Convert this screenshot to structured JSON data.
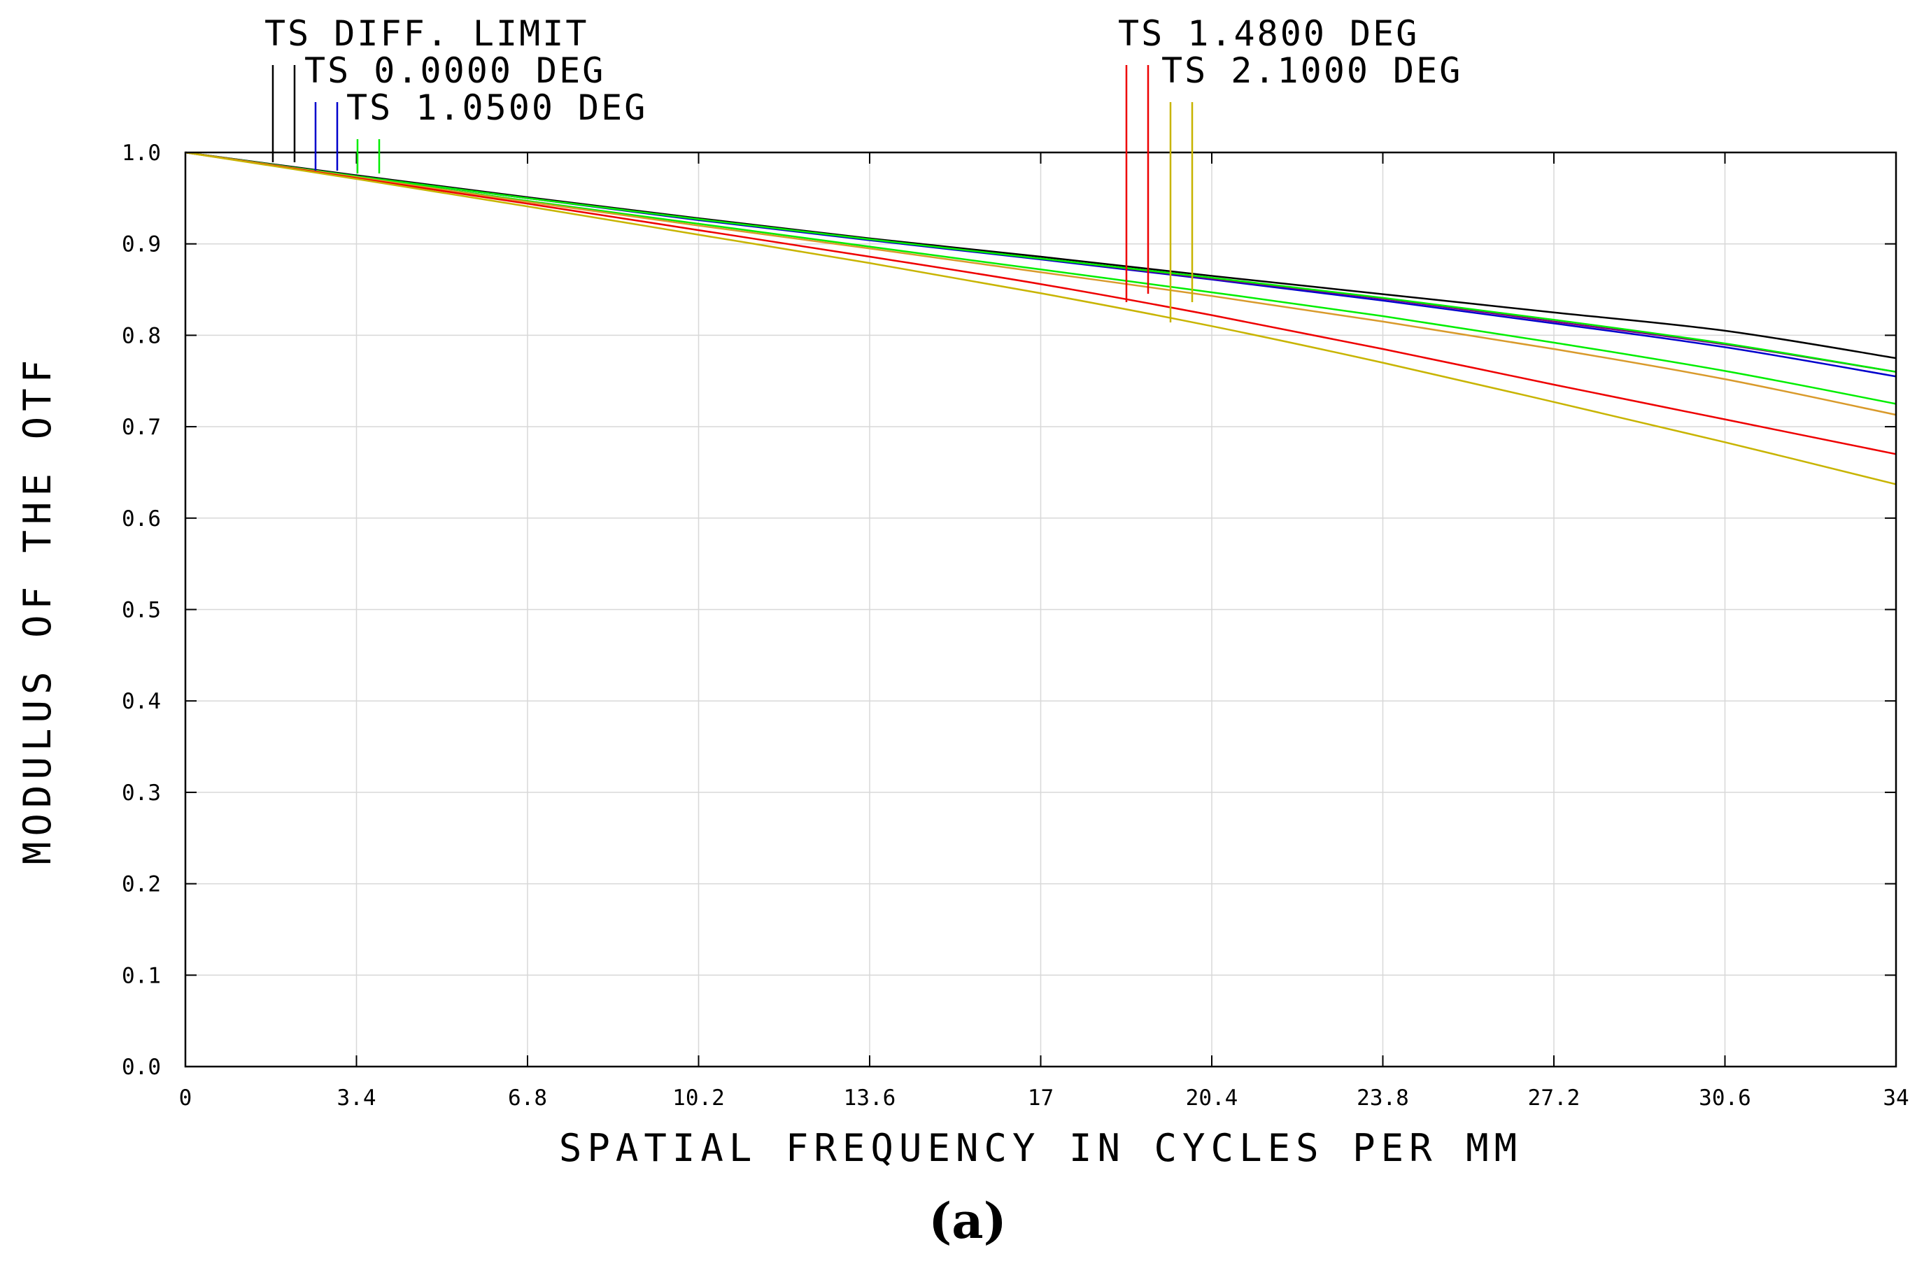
{
  "chart_data": {
    "type": "line",
    "xlabel": "SPATIAL FREQUENCY IN CYCLES PER MM",
    "ylabel": "MODULUS OF THE OTF",
    "caption": "(a)",
    "xlim": [
      0,
      34
    ],
    "ylim": [
      0,
      1
    ],
    "grid": true,
    "xticks": [
      0,
      3.4,
      6.8,
      10.2,
      13.6,
      17,
      20.4,
      23.8,
      27.2,
      30.6,
      34
    ],
    "xtick_labels": [
      "0",
      "3.4",
      "6.8",
      "10.2",
      "13.6",
      "17",
      "20.4",
      "23.8",
      "27.2",
      "30.6",
      "34"
    ],
    "yticks": [
      0,
      0.1,
      0.2,
      0.3,
      0.4,
      0.5,
      0.6,
      0.7,
      0.8,
      0.9,
      1.0
    ],
    "ytick_labels": [
      "0.0",
      "0.1",
      "0.2",
      "0.3",
      "0.4",
      "0.5",
      "0.6",
      "0.7",
      "0.8",
      "0.9",
      "1.0"
    ],
    "x": [
      0,
      3.4,
      6.8,
      10.2,
      13.6,
      17,
      20.4,
      23.8,
      27.2,
      30.6,
      34
    ],
    "legend": [
      {
        "label": "TS DIFF. LIMIT",
        "colors": [
          "#000000"
        ]
      },
      {
        "label": "TS 0.0000 DEG",
        "colors": [
          "#0000cc"
        ]
      },
      {
        "label": "TS 1.0500 DEG",
        "colors": [
          "#00ee00"
        ]
      },
      {
        "label": "TS 1.4800 DEG",
        "colors": [
          "#ee0000"
        ]
      },
      {
        "label": "TS 2.1000 DEG",
        "colors": [
          "#c8b400"
        ]
      }
    ],
    "series": [
      {
        "name": "TS DIFF. LIMIT",
        "color": "#000000",
        "values": [
          1.0,
          0.975,
          0.951,
          0.928,
          0.906,
          0.886,
          0.865,
          0.845,
          0.825,
          0.805,
          0.775
        ]
      },
      {
        "name": "TS 0.0000 DEG T",
        "color": "#0000cc",
        "values": [
          1.0,
          0.974,
          0.95,
          0.926,
          0.904,
          0.883,
          0.861,
          0.838,
          0.813,
          0.787,
          0.755
        ]
      },
      {
        "name": "TS 0.0000 DEG S",
        "color": "#800080",
        "values": [
          1.0,
          0.974,
          0.95,
          0.927,
          0.905,
          0.884,
          0.862,
          0.84,
          0.815,
          0.79,
          0.76
        ]
      },
      {
        "name": "TS 1.0500 DEG T",
        "color": "#00ee00",
        "values": [
          1.0,
          0.974,
          0.95,
          0.927,
          0.905,
          0.884,
          0.863,
          0.841,
          0.817,
          0.791,
          0.76
        ]
      },
      {
        "name": "TS 1.0500 DEG S",
        "color": "#00ee00",
        "values": [
          1.0,
          0.973,
          0.947,
          0.922,
          0.897,
          0.872,
          0.847,
          0.821,
          0.792,
          0.761,
          0.725
        ]
      },
      {
        "name": "TS 1.4800 DEG T",
        "color": "#d99a2b",
        "values": [
          1.0,
          0.973,
          0.946,
          0.92,
          0.895,
          0.869,
          0.843,
          0.815,
          0.785,
          0.752,
          0.713
        ]
      },
      {
        "name": "TS 1.4800 DEG S",
        "color": "#ee0000",
        "values": [
          1.0,
          0.972,
          0.944,
          0.915,
          0.886,
          0.856,
          0.822,
          0.785,
          0.746,
          0.708,
          0.67
        ]
      },
      {
        "name": "TS 2.1000 DEG",
        "color": "#c8b400",
        "values": [
          1.0,
          0.971,
          0.941,
          0.91,
          0.879,
          0.846,
          0.81,
          0.77,
          0.727,
          0.683,
          0.637
        ]
      }
    ]
  }
}
